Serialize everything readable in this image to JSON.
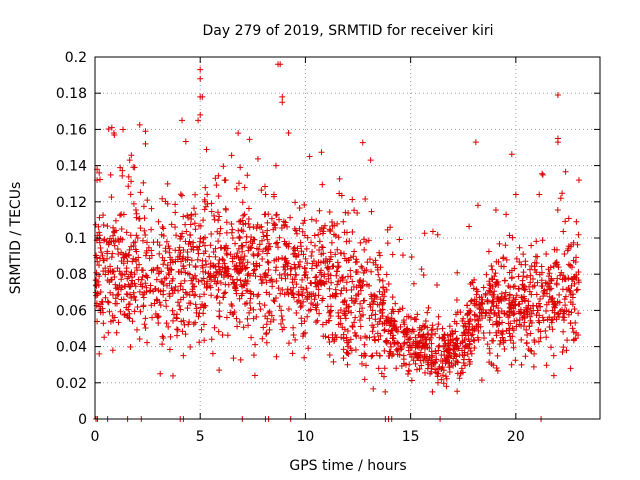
{
  "chart_data": {
    "type": "scatter",
    "title": "Day 279 of 2019, SRMTID for receiver kiri",
    "xlabel": "GPS time / hours",
    "ylabel": "SRMTID / TECUs",
    "xlim": [
      0,
      24
    ],
    "ylim": [
      0,
      0.2
    ],
    "xticks": [
      0,
      5,
      10,
      15,
      20
    ],
    "xtick_labels": [
      "0",
      "5",
      "10",
      "15",
      "20"
    ],
    "yticks": [
      0,
      0.02,
      0.04,
      0.06,
      0.08,
      0.1,
      0.12,
      0.14,
      0.16,
      0.18,
      0.2
    ],
    "ytick_labels": [
      "0",
      "0.02",
      "0.04",
      "0.06",
      "0.08",
      "0.1",
      "0.12",
      "0.14",
      "0.16",
      "0.18",
      "0.2"
    ],
    "grid": true,
    "marker": "+",
    "series_color": "#dd0000",
    "trend": [
      [
        0,
        0.082
      ],
      [
        1,
        0.083
      ],
      [
        2,
        0.08
      ],
      [
        3,
        0.074
      ],
      [
        4,
        0.08
      ],
      [
        5,
        0.082
      ],
      [
        6,
        0.08
      ],
      [
        7,
        0.083
      ],
      [
        8,
        0.081
      ],
      [
        9,
        0.082
      ],
      [
        10,
        0.08
      ],
      [
        11,
        0.073
      ],
      [
        12,
        0.07
      ],
      [
        13,
        0.066
      ],
      [
        14,
        0.052
      ],
      [
        15,
        0.042
      ],
      [
        16,
        0.039
      ],
      [
        17,
        0.037
      ],
      [
        17.5,
        0.038
      ],
      [
        18,
        0.062
      ],
      [
        19,
        0.06
      ],
      [
        20,
        0.064
      ],
      [
        21,
        0.065
      ],
      [
        22,
        0.068
      ],
      [
        23,
        0.072
      ]
    ],
    "outliers": [
      [
        5.0,
        0.193
      ],
      [
        5.0,
        0.188
      ],
      [
        5.0,
        0.178
      ],
      [
        5.1,
        0.178
      ],
      [
        5.0,
        0.168
      ],
      [
        8.7,
        0.196
      ],
      [
        8.8,
        0.196
      ],
      [
        8.9,
        0.178
      ],
      [
        8.9,
        0.175
      ],
      [
        4.9,
        0.165
      ],
      [
        0.8,
        0.161
      ],
      [
        0.9,
        0.158
      ],
      [
        2.4,
        0.159
      ],
      [
        2.4,
        0.152
      ],
      [
        9.2,
        0.158
      ],
      [
        13.1,
        0.143
      ],
      [
        18.1,
        0.153
      ],
      [
        22.0,
        0.179
      ],
      [
        22.0,
        0.155
      ],
      [
        22.0,
        0.153
      ],
      [
        0.1,
        0.138
      ],
      [
        0.2,
        0.136
      ],
      [
        0.1,
        0.132
      ],
      [
        3.1,
        0.025
      ],
      [
        4.2,
        0.035
      ],
      [
        0.2,
        0.036
      ],
      [
        5.9,
        0.027
      ],
      [
        7.6,
        0.024
      ],
      [
        12.0,
        0.03
      ],
      [
        22.6,
        0.028
      ],
      [
        10.2,
        0.145
      ],
      [
        8.6,
        0.14
      ],
      [
        6.9,
        0.139
      ],
      [
        23.0,
        0.132
      ],
      [
        20.0,
        0.124
      ],
      [
        18.2,
        0.118
      ],
      [
        11.9,
        0.114
      ],
      [
        11.8,
        0.109
      ],
      [
        16.7,
        0.018
      ],
      [
        16.3,
        0.02
      ]
    ],
    "zero_markers": [
      0.05,
      0.12,
      0.6,
      1.55,
      2.2,
      4.05,
      4.2,
      7.0,
      8.1,
      8.25,
      9.3,
      13.8,
      13.95,
      14.1,
      16.4,
      21.2
    ]
  }
}
